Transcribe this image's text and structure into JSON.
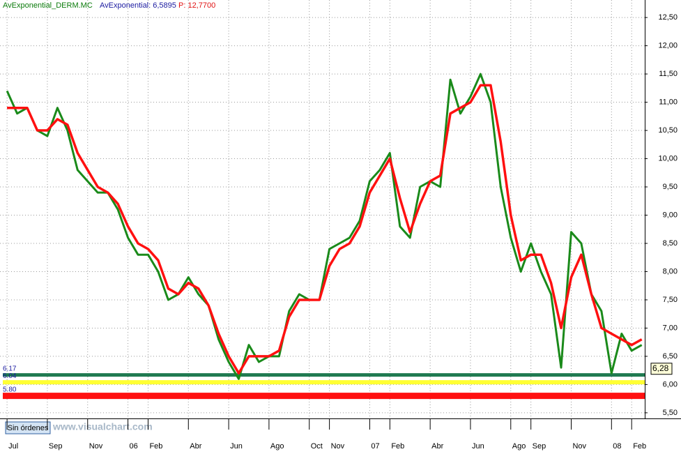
{
  "chart_data": {
    "type": "line",
    "header": {
      "name": "AvExponential_DERM.MC",
      "indicator": "AvExponential: 6,5895",
      "price": "P: 12,7700"
    },
    "button": "Sin órdenes",
    "watermark": "www.visualchart.com",
    "xlim": [
      -0.35,
      31.65
    ],
    "xticks": [
      {
        "value": 0,
        "label": "Jul"
      },
      {
        "value": 2,
        "label": "Sep"
      },
      {
        "value": 4,
        "label": "Nov"
      },
      {
        "value": 6,
        "label": "06"
      },
      {
        "value": 7,
        "label": "Feb"
      },
      {
        "value": 9,
        "label": "Abr"
      },
      {
        "value": 11,
        "label": "Jun"
      },
      {
        "value": 13,
        "label": "Ago"
      },
      {
        "value": 15,
        "label": "Oct"
      },
      {
        "value": 16,
        "label": "Nov"
      },
      {
        "value": 18,
        "label": "07"
      },
      {
        "value": 19,
        "label": "Feb"
      },
      {
        "value": 21,
        "label": "Abr"
      },
      {
        "value": 23,
        "label": "Jun"
      },
      {
        "value": 25,
        "label": "Ago"
      },
      {
        "value": 26,
        "label": "Sep"
      },
      {
        "value": 28,
        "label": "Nov"
      },
      {
        "value": 30,
        "label": "08"
      },
      {
        "value": 31,
        "label": "Feb"
      }
    ],
    "ylim": [
      5.4,
      12.81
    ],
    "yticks": [
      {
        "value": 5.5,
        "label": "5,50"
      },
      {
        "value": 6,
        "label": "6,00"
      },
      {
        "value": 6.5,
        "label": "6,50"
      },
      {
        "value": 7,
        "label": "7,00"
      },
      {
        "value": 7.5,
        "label": "7,50"
      },
      {
        "value": 8,
        "label": "8,00"
      },
      {
        "value": 8.5,
        "label": "8,50"
      },
      {
        "value": 9,
        "label": "9,00"
      },
      {
        "value": 9.5,
        "label": "9,50"
      },
      {
        "value": 10,
        "label": "10,00"
      },
      {
        "value": 10.5,
        "label": "10,50"
      },
      {
        "value": 11,
        "label": "11,00"
      },
      {
        "value": 11.5,
        "label": "11,50"
      },
      {
        "value": 12,
        "label": "12,00"
      },
      {
        "value": 12.5,
        "label": "12,50"
      }
    ],
    "grid": true,
    "x": [
      0,
      0.5,
      1,
      1.5,
      2,
      2.5,
      3,
      3.5,
      4,
      4.5,
      5,
      5.5,
      6,
      6.5,
      7,
      7.5,
      8,
      8.5,
      9,
      9.5,
      10,
      10.5,
      11,
      11.5,
      12,
      12.5,
      13,
      13.5,
      14,
      14.5,
      15,
      15.5,
      16,
      16.5,
      17,
      17.5,
      18,
      18.5,
      19,
      19.5,
      20,
      20.5,
      21,
      21.5,
      22,
      22.5,
      23,
      23.5,
      24,
      24.5,
      25,
      25.5,
      26,
      26.5,
      27,
      27.5,
      28,
      28.5,
      29,
      29.5,
      30,
      30.5,
      31,
      31.5
    ],
    "series": [
      {
        "color": "#1a8a1a",
        "width": 3,
        "values": [
          11.2,
          10.8,
          10.9,
          10.5,
          10.4,
          10.9,
          10.5,
          9.8,
          9.6,
          9.4,
          9.4,
          9.1,
          8.6,
          8.3,
          8.3,
          8.0,
          7.5,
          7.6,
          7.9,
          7.6,
          7.4,
          6.8,
          6.4,
          6.1,
          6.7,
          6.4,
          6.5,
          6.5,
          7.3,
          7.6,
          7.5,
          7.5,
          8.4,
          8.5,
          8.6,
          8.9,
          9.6,
          9.8,
          10.1,
          8.8,
          8.6,
          9.5,
          9.6,
          9.5,
          11.4,
          10.8,
          11.1,
          11.5,
          11.0,
          9.5,
          8.6,
          8.0,
          8.5,
          8.0,
          7.6,
          6.3,
          8.7,
          8.5,
          7.6,
          7.3,
          6.2,
          6.9,
          6.6,
          6.7
        ]
      },
      {
        "color": "#ff1010",
        "width": 3.5,
        "values": [
          10.9,
          10.9,
          10.9,
          10.5,
          10.5,
          10.7,
          10.6,
          10.1,
          9.8,
          9.5,
          9.4,
          9.2,
          8.8,
          8.5,
          8.4,
          8.2,
          7.7,
          7.6,
          7.8,
          7.7,
          7.4,
          6.9,
          6.5,
          6.2,
          6.5,
          6.5,
          6.5,
          6.6,
          7.2,
          7.5,
          7.5,
          7.5,
          8.1,
          8.4,
          8.5,
          8.8,
          9.4,
          9.7,
          10.0,
          9.3,
          8.7,
          9.2,
          9.6,
          9.7,
          10.8,
          10.9,
          11.0,
          11.3,
          11.3,
          10.3,
          9.0,
          8.2,
          8.3,
          8.3,
          7.8,
          7.0,
          7.9,
          8.3,
          7.6,
          7.0,
          6.9,
          6.8,
          6.7,
          6.8
        ]
      }
    ],
    "levels": [
      {
        "value": 6.17,
        "label": "6.17",
        "color": "#1f7a50",
        "width": 5
      },
      {
        "value": 6.04,
        "label": "6.04",
        "color": "#ffff33",
        "width": 6
      },
      {
        "value": 5.8,
        "label": "5.80",
        "color": "#ff1010",
        "width": 9
      }
    ],
    "last_price": {
      "value": 6.28,
      "label": "6,28"
    }
  }
}
